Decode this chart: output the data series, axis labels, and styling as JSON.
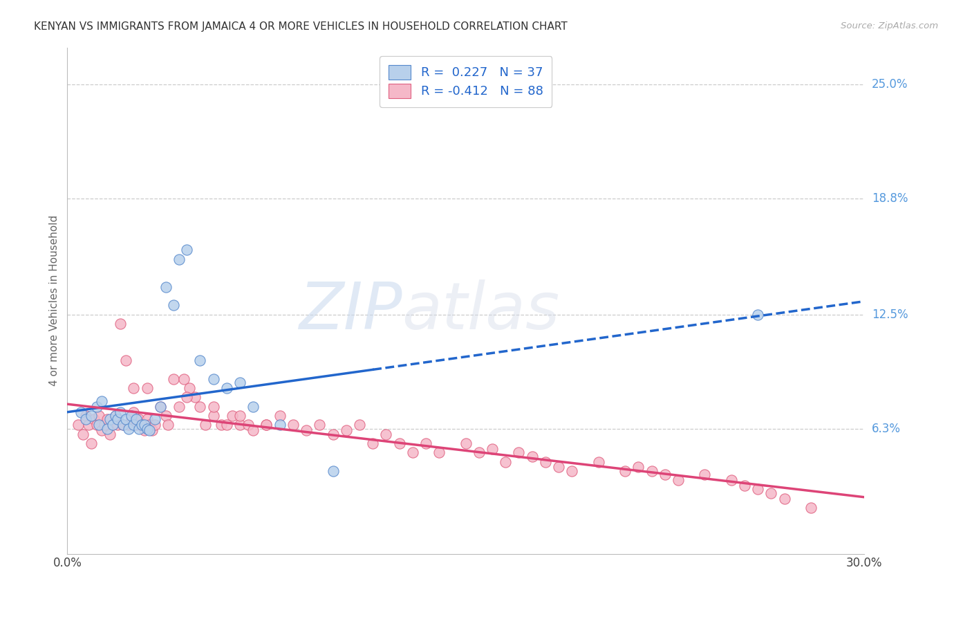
{
  "title": "KENYAN VS IMMIGRANTS FROM JAMAICA 4 OR MORE VEHICLES IN HOUSEHOLD CORRELATION CHART",
  "source": "Source: ZipAtlas.com",
  "ylabel": "4 or more Vehicles in Household",
  "xlim": [
    0.0,
    0.3
  ],
  "ylim": [
    -0.005,
    0.27
  ],
  "xtick_labels": [
    "0.0%",
    "30.0%"
  ],
  "ytick_labels": [
    "6.3%",
    "12.5%",
    "18.8%",
    "25.0%"
  ],
  "ytick_values": [
    0.063,
    0.125,
    0.188,
    0.25
  ],
  "watermark_zip": "ZIP",
  "watermark_atlas": "atlas",
  "legend_kenyan_R": " 0.227",
  "legend_kenyan_N": "37",
  "legend_jamaica_R": "-0.412",
  "legend_jamaica_N": "88",
  "kenyan_fill_color": "#b8d0eb",
  "kenya_edge_color": "#5588cc",
  "jamaica_fill_color": "#f5b8c8",
  "jamaica_edge_color": "#e06080",
  "kenyan_line_color": "#2266cc",
  "jamaica_line_color": "#dd4477",
  "right_label_color": "#5599dd",
  "kenyan_scatter_x": [
    0.005,
    0.007,
    0.009,
    0.011,
    0.012,
    0.013,
    0.015,
    0.016,
    0.017,
    0.018,
    0.019,
    0.02,
    0.021,
    0.022,
    0.023,
    0.024,
    0.025,
    0.026,
    0.027,
    0.028,
    0.029,
    0.03,
    0.031,
    0.033,
    0.035,
    0.037,
    0.04,
    0.042,
    0.045,
    0.05,
    0.055,
    0.06,
    0.065,
    0.07,
    0.08,
    0.1,
    0.26
  ],
  "kenyan_scatter_y": [
    0.072,
    0.068,
    0.07,
    0.075,
    0.065,
    0.078,
    0.063,
    0.068,
    0.065,
    0.07,
    0.068,
    0.072,
    0.065,
    0.068,
    0.063,
    0.07,
    0.065,
    0.068,
    0.063,
    0.065,
    0.065,
    0.063,
    0.062,
    0.068,
    0.075,
    0.14,
    0.13,
    0.155,
    0.16,
    0.1,
    0.09,
    0.085,
    0.088,
    0.075,
    0.065,
    0.04,
    0.125
  ],
  "jamaica_scatter_x": [
    0.004,
    0.006,
    0.007,
    0.008,
    0.009,
    0.01,
    0.011,
    0.012,
    0.013,
    0.014,
    0.015,
    0.016,
    0.017,
    0.018,
    0.019,
    0.02,
    0.021,
    0.022,
    0.023,
    0.024,
    0.025,
    0.026,
    0.027,
    0.028,
    0.029,
    0.03,
    0.031,
    0.032,
    0.033,
    0.035,
    0.037,
    0.038,
    0.04,
    0.042,
    0.044,
    0.046,
    0.048,
    0.05,
    0.052,
    0.055,
    0.058,
    0.06,
    0.062,
    0.065,
    0.068,
    0.07,
    0.075,
    0.08,
    0.085,
    0.09,
    0.095,
    0.1,
    0.105,
    0.11,
    0.115,
    0.12,
    0.125,
    0.13,
    0.135,
    0.14,
    0.15,
    0.155,
    0.16,
    0.165,
    0.17,
    0.175,
    0.18,
    0.185,
    0.19,
    0.2,
    0.21,
    0.215,
    0.22,
    0.225,
    0.23,
    0.24,
    0.25,
    0.255,
    0.26,
    0.265,
    0.27,
    0.28,
    0.03,
    0.025,
    0.045,
    0.055,
    0.075,
    0.065
  ],
  "jamaica_scatter_y": [
    0.065,
    0.06,
    0.07,
    0.065,
    0.055,
    0.068,
    0.065,
    0.07,
    0.062,
    0.065,
    0.068,
    0.06,
    0.065,
    0.07,
    0.065,
    0.12,
    0.065,
    0.1,
    0.065,
    0.068,
    0.072,
    0.065,
    0.068,
    0.065,
    0.062,
    0.068,
    0.065,
    0.062,
    0.065,
    0.075,
    0.07,
    0.065,
    0.09,
    0.075,
    0.09,
    0.085,
    0.08,
    0.075,
    0.065,
    0.07,
    0.065,
    0.065,
    0.07,
    0.065,
    0.065,
    0.062,
    0.065,
    0.07,
    0.065,
    0.062,
    0.065,
    0.06,
    0.062,
    0.065,
    0.055,
    0.06,
    0.055,
    0.05,
    0.055,
    0.05,
    0.055,
    0.05,
    0.052,
    0.045,
    0.05,
    0.048,
    0.045,
    0.042,
    0.04,
    0.045,
    0.04,
    0.042,
    0.04,
    0.038,
    0.035,
    0.038,
    0.035,
    0.032,
    0.03,
    0.028,
    0.025,
    0.02,
    0.085,
    0.085,
    0.08,
    0.075,
    0.065,
    0.07
  ],
  "background_color": "#ffffff",
  "grid_color": "#cccccc"
}
